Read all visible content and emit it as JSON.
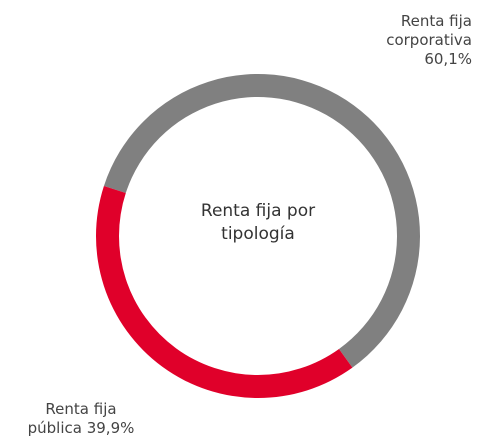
{
  "chart_data": {
    "type": "donut",
    "title": "Renta fija por tipología",
    "categories": [
      "Renta fija corporativa",
      "Renta fija pública"
    ],
    "values": [
      60.1,
      39.9
    ],
    "value_labels": [
      "60,1%",
      "39,9%"
    ],
    "colors": [
      "#808080",
      "#e0002a"
    ]
  }
}
